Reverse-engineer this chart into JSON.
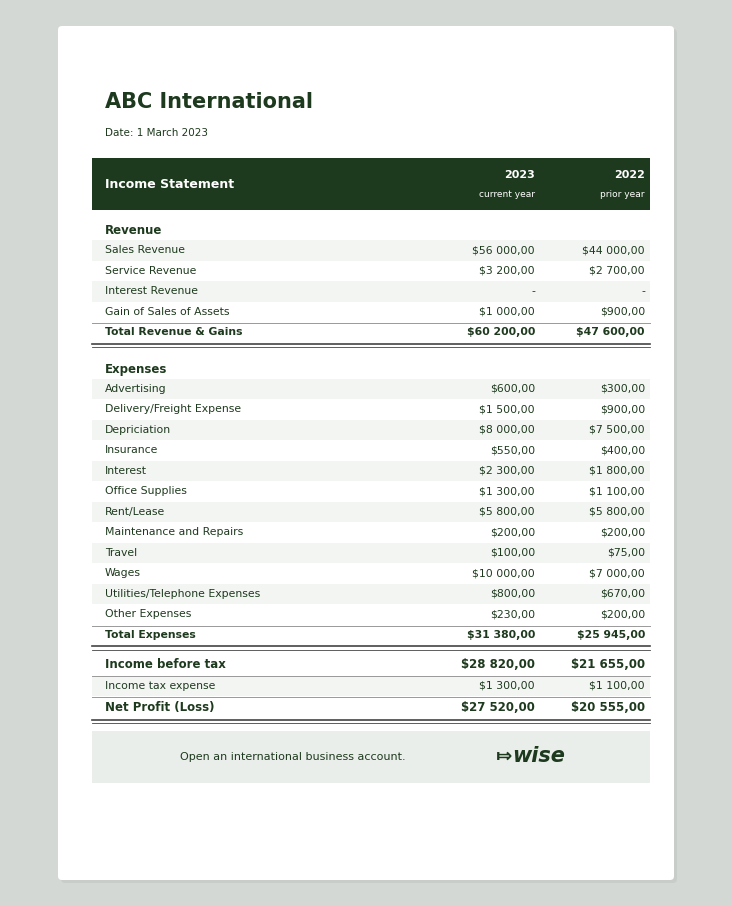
{
  "company": "ABC International",
  "date": "Date: 1 March 2023",
  "header_bg": "#1e3a1e",
  "header_text": "#ffffff",
  "row_text_color": "#1e3a1e",
  "stripe_color": "#f2f5f2",
  "white_color": "#ffffff",
  "footer_bg": "#eaeeea",
  "header_row": {
    "label": "Income Statement",
    "col2_year": "2023",
    "col2_sub": "current year",
    "col3_year": "2022",
    "col3_sub": "prior year"
  },
  "revenue_section": {
    "title": "Revenue",
    "rows": [
      {
        "label": "Sales Revenue",
        "col2": "$56 000,00",
        "col3": "$44 000,00"
      },
      {
        "label": "Service Revenue",
        "col2": "$3 200,00",
        "col3": "$2 700,00"
      },
      {
        "label": "Interest Revenue",
        "col2": "-",
        "col3": "-"
      },
      {
        "label": "Gain of Sales of Assets",
        "col2": "$1 000,00",
        "col3": "$900,00"
      }
    ],
    "total_label": "Total Revenue & Gains",
    "total_col2": "$60 200,00",
    "total_col3": "$47 600,00"
  },
  "expenses_section": {
    "title": "Expenses",
    "rows": [
      {
        "label": "Advertising",
        "col2": "$600,00",
        "col3": "$300,00"
      },
      {
        "label": "Delivery/Freight Expense",
        "col2": "$1 500,00",
        "col3": "$900,00"
      },
      {
        "label": "Depriciation",
        "col2": "$8 000,00",
        "col3": "$7 500,00"
      },
      {
        "label": "Insurance",
        "col2": "$550,00",
        "col3": "$400,00"
      },
      {
        "label": "Interest",
        "col2": "$2 300,00",
        "col3": "$1 800,00"
      },
      {
        "label": "Office Supplies",
        "col2": "$1 300,00",
        "col3": "$1 100,00"
      },
      {
        "label": "Rent/Lease",
        "col2": "$5 800,00",
        "col3": "$5 800,00"
      },
      {
        "label": "Maintenance and Repairs",
        "col2": "$200,00",
        "col3": "$200,00"
      },
      {
        "label": "Travel",
        "col2": "$100,00",
        "col3": "$75,00"
      },
      {
        "label": "Wages",
        "col2": "$10 000,00",
        "col3": "$7 000,00"
      },
      {
        "label": "Utilities/Telephone Expenses",
        "col2": "$800,00",
        "col3": "$670,00"
      },
      {
        "label": "Other Expenses",
        "col2": "$230,00",
        "col3": "$200,00"
      }
    ],
    "total_label": "Total Expenses",
    "total_col2": "$31 380,00",
    "total_col3": "$25 945,00"
  },
  "income_before_tax": {
    "label": "Income before tax",
    "col2": "$28 820,00",
    "col3": "$21 655,00"
  },
  "tax_row": {
    "label": "Income tax expense",
    "col2": "$1 300,00",
    "col3": "$1 100,00"
  },
  "net_profit": {
    "label": "Net Profit (Loss)",
    "col2": "$27 520,00",
    "col3": "$20 555,00"
  },
  "footer_text": "Open an international business account.",
  "bg_outer": "#d4d8d4",
  "bg_card": "#ffffff"
}
